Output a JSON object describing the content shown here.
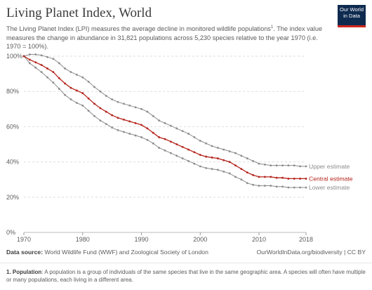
{
  "header": {
    "title": "Living Planet Index, World",
    "subtitle": "The Living Planet Index (LPI) measures the average decline in monitored wildlife populations",
    "subtitle_sup": "1",
    "subtitle_rest": ". The index value measures the change in abundance in 31,821 populations across 5,230 species relative to the year 1970 (i.e. 1970 = 100%)."
  },
  "logo": {
    "line1": "Our World",
    "line2": "in Data"
  },
  "footer": {
    "source_label": "Data source:",
    "source_text": "World Wildlife Fund (WWF) and Zoological Society of London",
    "right_text": "OurWorldInData.org/biodiversity | CC BY"
  },
  "footnote": {
    "label": "1. Population",
    "text": ": A population is a group of individuals of the same species that live in the same geographic area. A species will often have multiple or many populations, each living in a different area."
  },
  "colors": {
    "central": "#b5241c",
    "bounds": "#8c8c8c",
    "grid": "#dddddd",
    "axis_text": "#5b5b5b"
  },
  "chart_data": {
    "type": "line",
    "xlim": [
      1970,
      2018
    ],
    "ylim": [
      0,
      100
    ],
    "x_ticks": [
      1970,
      1980,
      1990,
      2000,
      2010,
      2018
    ],
    "y_ticks": [
      0,
      20,
      40,
      60,
      80,
      100
    ],
    "y_tick_format": "%",
    "grid": "horizontal-dashed",
    "series": [
      {
        "name": "Upper estimate",
        "role": "upper",
        "x": [
          1970,
          1971,
          1972,
          1973,
          1974,
          1975,
          1976,
          1977,
          1978,
          1979,
          1980,
          1981,
          1982,
          1983,
          1984,
          1985,
          1986,
          1987,
          1988,
          1989,
          1990,
          1991,
          1992,
          1993,
          1994,
          1995,
          1996,
          1997,
          1998,
          1999,
          2000,
          2001,
          2002,
          2003,
          2004,
          2005,
          2006,
          2007,
          2008,
          2009,
          2010,
          2011,
          2012,
          2013,
          2014,
          2015,
          2016,
          2017,
          2018
        ],
        "y": [
          100,
          101,
          101,
          100.5,
          99.5,
          98.5,
          96,
          93,
          91,
          89.5,
          88,
          85.5,
          82.5,
          80,
          77.5,
          75.5,
          74,
          73,
          72,
          71,
          70,
          68.5,
          66,
          63.5,
          62,
          60.5,
          59,
          57.5,
          56,
          54,
          52,
          50.5,
          49,
          48,
          47,
          46,
          45,
          43.5,
          42,
          40.5,
          39,
          38.5,
          38,
          38,
          38,
          38,
          38,
          37.5,
          37.5
        ]
      },
      {
        "name": "Central estimate",
        "role": "central",
        "x": [
          1970,
          1971,
          1972,
          1973,
          1974,
          1975,
          1976,
          1977,
          1978,
          1979,
          1980,
          1981,
          1982,
          1983,
          1984,
          1985,
          1986,
          1987,
          1988,
          1989,
          1990,
          1991,
          1992,
          1993,
          1994,
          1995,
          1996,
          1997,
          1998,
          1999,
          2000,
          2001,
          2002,
          2003,
          2004,
          2005,
          2006,
          2007,
          2008,
          2009,
          2010,
          2011,
          2012,
          2013,
          2014,
          2015,
          2016,
          2017,
          2018
        ],
        "y": [
          100,
          98,
          96.5,
          95,
          93,
          91,
          87.5,
          84.5,
          82,
          80.5,
          79,
          76,
          73,
          70.5,
          68.5,
          66.5,
          65,
          64,
          63,
          62,
          61,
          59,
          56.5,
          54,
          53,
          51.5,
          50,
          48.5,
          47,
          45.5,
          44,
          43,
          42.5,
          42,
          41,
          40,
          38,
          36,
          34,
          32.5,
          31.5,
          31.5,
          31.5,
          31,
          31,
          30.5,
          30.5,
          30.5,
          30.5
        ]
      },
      {
        "name": "Lower estimate",
        "role": "lower",
        "x": [
          1970,
          1971,
          1972,
          1973,
          1974,
          1975,
          1976,
          1977,
          1978,
          1979,
          1980,
          1981,
          1982,
          1983,
          1984,
          1985,
          1986,
          1987,
          1988,
          1989,
          1990,
          1991,
          1992,
          1993,
          1994,
          1995,
          1996,
          1997,
          1998,
          1999,
          2000,
          2001,
          2002,
          2003,
          2004,
          2005,
          2006,
          2007,
          2008,
          2009,
          2010,
          2011,
          2012,
          2013,
          2014,
          2015,
          2016,
          2017,
          2018
        ],
        "y": [
          100,
          96,
          93.5,
          91,
          88,
          85,
          81.5,
          78,
          75.5,
          73.5,
          72,
          69,
          66,
          63.5,
          61.5,
          59.5,
          58,
          57,
          56,
          55,
          54,
          52.5,
          50.5,
          48,
          46.5,
          45,
          43.5,
          42,
          40.5,
          39,
          37.5,
          36.5,
          36,
          35.5,
          34.5,
          33.5,
          31.5,
          30,
          28,
          27,
          26.5,
          26.5,
          26.5,
          26,
          26,
          25.5,
          25.5,
          25.5,
          25.5
        ]
      }
    ]
  }
}
